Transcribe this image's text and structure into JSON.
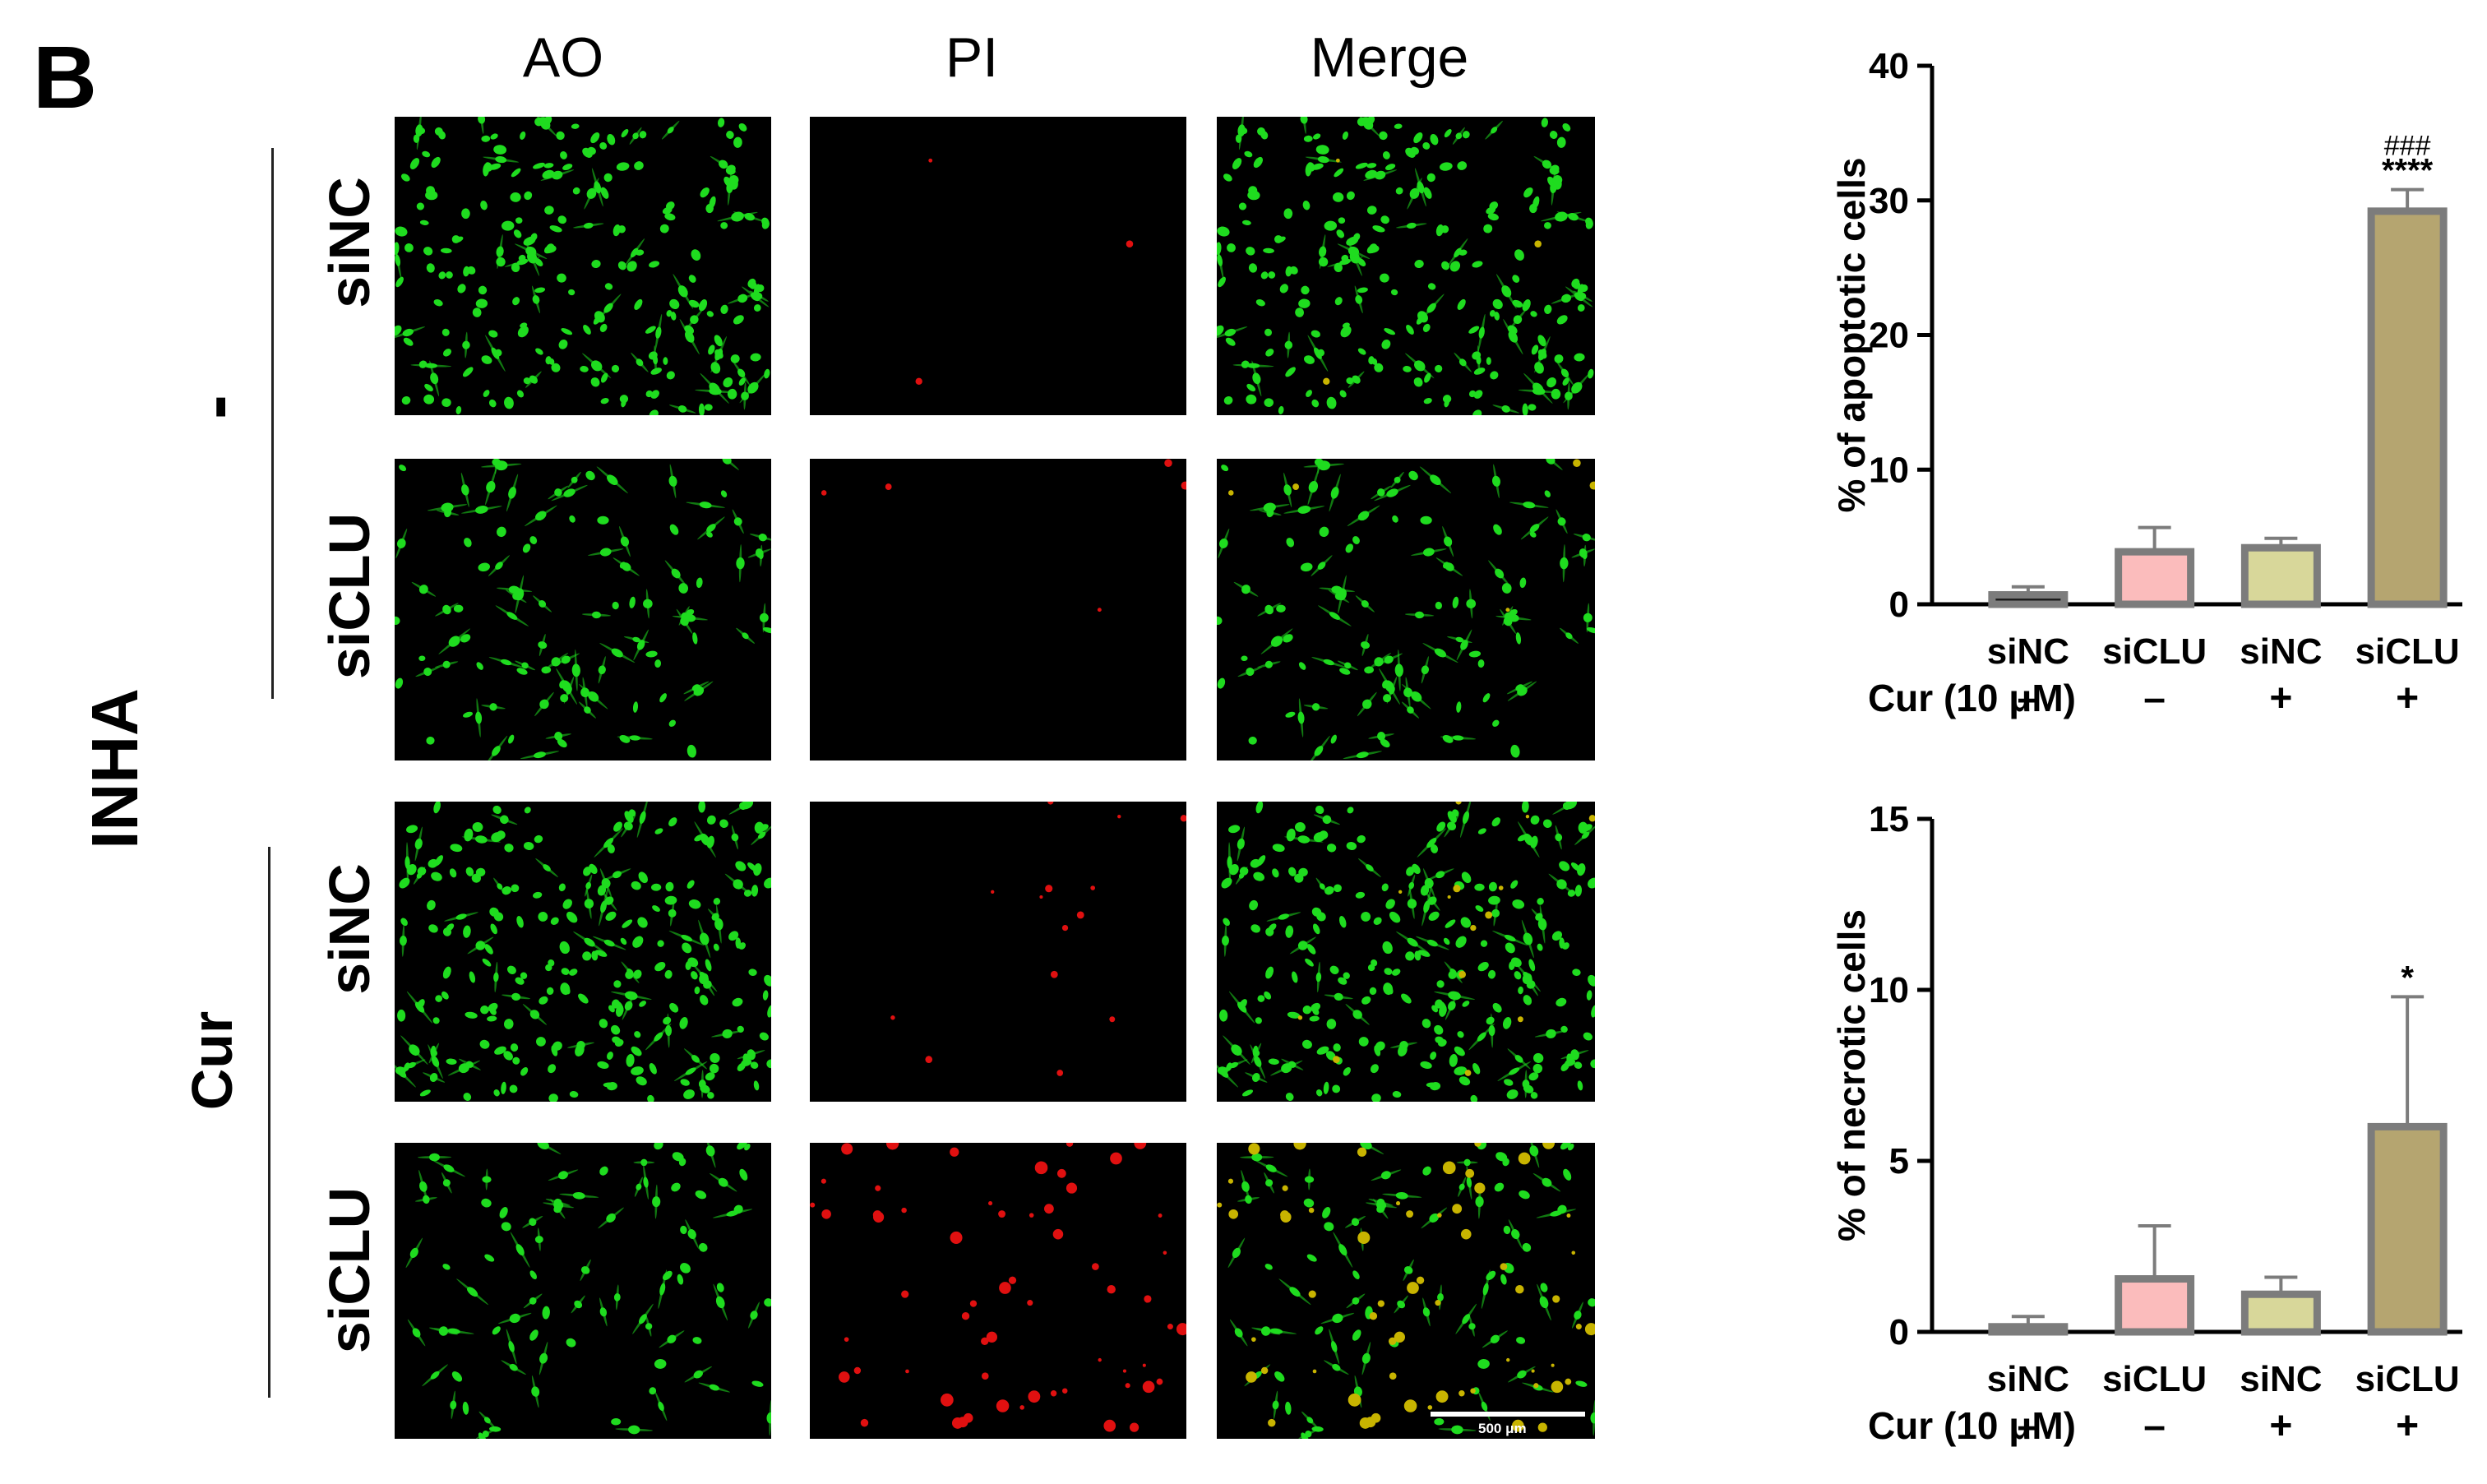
{
  "figure": {
    "panel_letter": "B",
    "columns": [
      "AO",
      "PI",
      "Merge"
    ],
    "side_label": "INHA",
    "group_labels": [
      "-",
      "Cur"
    ],
    "row_labels": [
      "siNC",
      "siCLU",
      "siNC",
      "siCLU"
    ],
    "scale_bar_label": "500 μm",
    "colors": {
      "ao_green": "#1fdc1f",
      "pi_red": "#e01010",
      "merge_yellow": "#c8b400"
    }
  },
  "chart_data": [
    {
      "type": "bar",
      "categories": [
        "siNC",
        "siCLU",
        "siNC",
        "siCLU"
      ],
      "treatment_label": "Cur (10 μM)",
      "treatment": [
        "–",
        "–",
        "+",
        "+"
      ],
      "values": [
        0.7,
        3.9,
        4.2,
        29.2
      ],
      "errors": [
        0.6,
        1.8,
        0.7,
        1.6
      ],
      "annotations": [
        "",
        "",
        "",
        "****"
      ],
      "annotations_top": [
        "",
        "",
        "",
        "###"
      ],
      "ylabel": "% of apoptotic cells",
      "ylim": [
        0,
        40
      ],
      "yticks": [
        0,
        10,
        20,
        30,
        40
      ],
      "bar_colors": [
        "#1a1a1a",
        "#fbbcbc",
        "#d8d79a",
        "#b5a570"
      ]
    },
    {
      "type": "bar",
      "categories": [
        "siNC",
        "siCLU",
        "siNC",
        "siCLU"
      ],
      "treatment_label": "Cur (10 μM)",
      "treatment": [
        "–",
        "–",
        "+",
        "+"
      ],
      "values": [
        0.15,
        1.55,
        1.1,
        6.0
      ],
      "errors": [
        0.3,
        1.55,
        0.5,
        3.8
      ],
      "annotations": [
        "",
        "",
        "",
        "*"
      ],
      "annotations_top": [
        "",
        "",
        "",
        ""
      ],
      "ylabel": "% of necrotic cells",
      "ylim": [
        0,
        15
      ],
      "yticks": [
        0,
        5,
        10,
        15
      ],
      "bar_colors": [
        "#8a8a8a",
        "#fbbcbc",
        "#d8d79a",
        "#b5a570"
      ]
    }
  ]
}
